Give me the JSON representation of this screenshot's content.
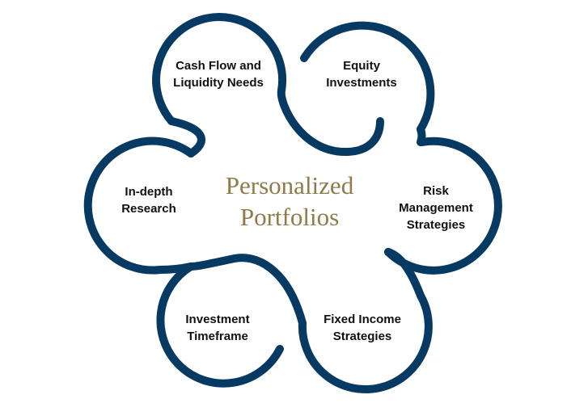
{
  "center": {
    "line1": "Personalized",
    "line2": "Portfolios"
  },
  "rings": [
    {
      "lines": [
        "Cash Flow and",
        "Liquidity Needs"
      ]
    },
    {
      "lines": [
        "Equity",
        "Investments"
      ]
    },
    {
      "lines": [
        "Risk",
        "Management",
        "Strategies"
      ]
    },
    {
      "lines": [
        "Fixed Income",
        "Strategies"
      ]
    },
    {
      "lines": [
        "Investment",
        "Timeframe"
      ]
    },
    {
      "lines": [
        "In-depth",
        "Research"
      ]
    }
  ],
  "colors": {
    "ring_stroke": "#073a63",
    "title_text": "#8f7b4a",
    "label_text": "#111111",
    "background": "#ffffff"
  }
}
